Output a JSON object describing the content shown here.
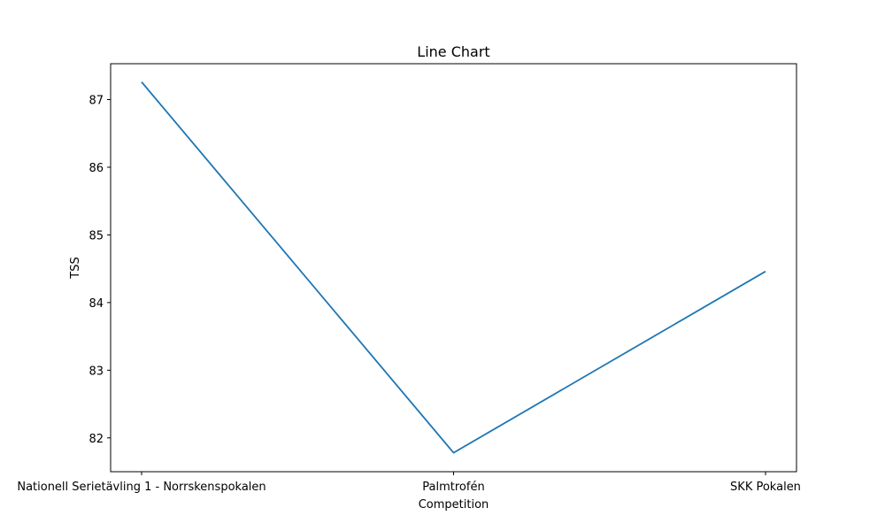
{
  "chart_data": {
    "type": "line",
    "title": "Line Chart",
    "xlabel": "Competition",
    "ylabel": "TSS",
    "categories": [
      "Nationell Serietävling 1 - Norrskenspokalen",
      "Palmtrofén",
      "SKK Pokalen"
    ],
    "series": [
      {
        "values": [
          87.26,
          81.78,
          84.46
        ],
        "color": "#1f77b4"
      }
    ],
    "yticks": [
      82,
      83,
      84,
      85,
      86,
      87
    ],
    "ylim": [
      81.5,
      87.53
    ],
    "grid": false,
    "legend": "none"
  }
}
